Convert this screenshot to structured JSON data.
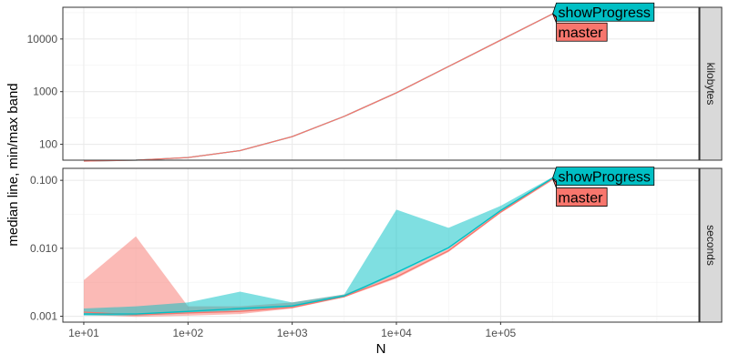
{
  "chart_data": {
    "type": "line",
    "xlabel": "N",
    "ylabel": "median line, min/max band",
    "x_scale": "log10",
    "x_ticks": [
      {
        "value": 10,
        "label": "1e+01"
      },
      {
        "value": 100,
        "label": "1e+02"
      },
      {
        "value": 1000,
        "label": "1e+03"
      },
      {
        "value": 10000,
        "label": "1e+04"
      },
      {
        "value": 100000,
        "label": "1e+05"
      }
    ],
    "x_lim": [
      6.3,
      8000000
    ],
    "grid": true,
    "colors": {
      "master": "#f8766d",
      "showProgress": "#00bfc4"
    },
    "panels": [
      {
        "strip": "kilobytes",
        "y_scale": "log10",
        "y_lim": [
          50,
          40000
        ],
        "y_ticks": [
          {
            "value": 100,
            "label": "100"
          },
          {
            "value": 1000,
            "label": "1000"
          },
          {
            "value": 10000,
            "label": "10000"
          }
        ],
        "series": [
          {
            "name": "showProgress",
            "x": [
              10,
              31.6,
              100,
              316,
              1000,
              3162,
              10000,
              31623,
              100000,
              316228
            ],
            "median": [
              48,
              50,
              56,
              76,
              140,
              340,
              950,
              3000,
              9500,
              30000
            ]
          },
          {
            "name": "master",
            "x": [
              10,
              31.6,
              100,
              316,
              1000,
              3162,
              10000,
              31623,
              100000,
              316228
            ],
            "median": [
              48,
              50,
              56,
              76,
              140,
              340,
              950,
              3000,
              9500,
              30000
            ]
          }
        ]
      },
      {
        "strip": "seconds",
        "y_scale": "log10",
        "y_lim": [
          0.00082,
          0.15
        ],
        "y_ticks": [
          {
            "value": 0.001,
            "label": "0.001"
          },
          {
            "value": 0.01,
            "label": "0.010"
          },
          {
            "value": 0.1,
            "label": "0.100"
          }
        ],
        "series": [
          {
            "name": "master",
            "x": [
              10,
              31.6,
              100,
              316,
              1000,
              3162,
              10000,
              31623,
              100000,
              316228
            ],
            "median": [
              0.00115,
              0.00105,
              0.00112,
              0.00118,
              0.00135,
              0.00195,
              0.0038,
              0.0092,
              0.034,
              0.105
            ],
            "min": [
              0.00105,
              0.00098,
              0.00102,
              0.00108,
              0.0013,
              0.0019,
              0.0036,
              0.0088,
              0.033,
              0.1
            ],
            "max": [
              0.0034,
              0.015,
              0.0014,
              0.0014,
              0.0016,
              0.0021,
              0.0042,
              0.0098,
              0.036,
              0.11
            ]
          },
          {
            "name": "showProgress",
            "x": [
              10,
              31.6,
              100,
              316,
              1000,
              3162,
              10000,
              31623,
              100000,
              316228
            ],
            "median": [
              0.00108,
              0.00108,
              0.00118,
              0.0013,
              0.00142,
              0.002,
              0.0044,
              0.0102,
              0.036,
              0.108
            ],
            "min": [
              0.00102,
              0.00102,
              0.0011,
              0.00122,
              0.00135,
              0.0019,
              0.0042,
              0.0098,
              0.035,
              0.104
            ],
            "max": [
              0.0013,
              0.0014,
              0.0016,
              0.0023,
              0.0016,
              0.0021,
              0.037,
              0.02,
              0.042,
              0.112
            ]
          }
        ]
      }
    ],
    "direct_labels": [
      "showProgress",
      "master"
    ]
  }
}
